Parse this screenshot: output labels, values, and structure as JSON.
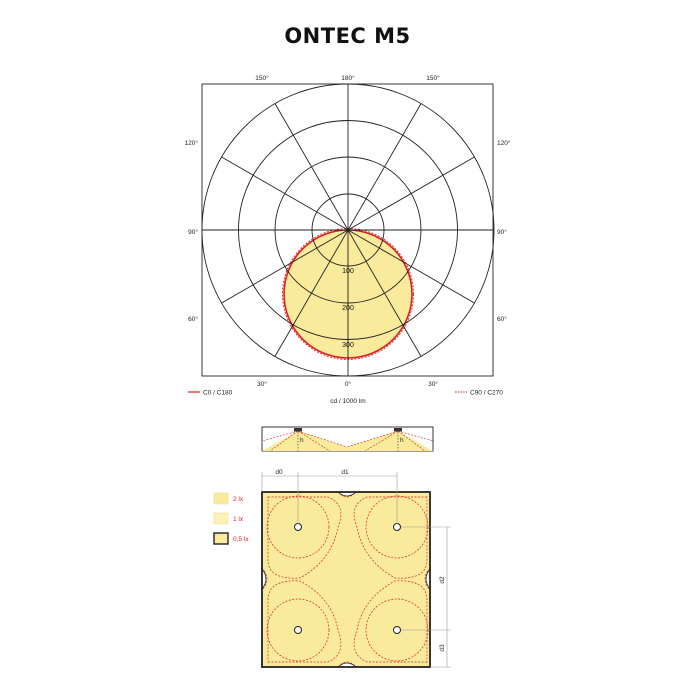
{
  "title": "ONTEC M5",
  "polar": {
    "angles": {
      "a150_left": "150°",
      "a180": "180°",
      "a150_right": "150°",
      "a120_left": "120°",
      "a120_right": "120°",
      "a90_left": "90°",
      "a90_right": "90°",
      "a60_left": "60°",
      "a60_right": "60°",
      "a30_left": "30°",
      "a0": "0°",
      "a30_right": "30°"
    },
    "radial_values": {
      "r100": "100",
      "r200": "200",
      "r300": "300"
    },
    "legend_c0": "C0 / C180",
    "legend_c90": "C90 / C270",
    "unit": "cd / 1000 lm"
  },
  "section": {
    "h_left": "h",
    "h_right": "h"
  },
  "plan": {
    "dims": {
      "d0": "d0",
      "d1": "d1",
      "d2": "d2",
      "d3": "d3"
    },
    "legend": [
      {
        "label": "2 lx"
      },
      {
        "label": "1 lx"
      },
      {
        "label": "0,5 lx"
      }
    ]
  },
  "colors": {
    "fill": "#faeb9c",
    "red": "#d8201f",
    "line": "#222222"
  }
}
